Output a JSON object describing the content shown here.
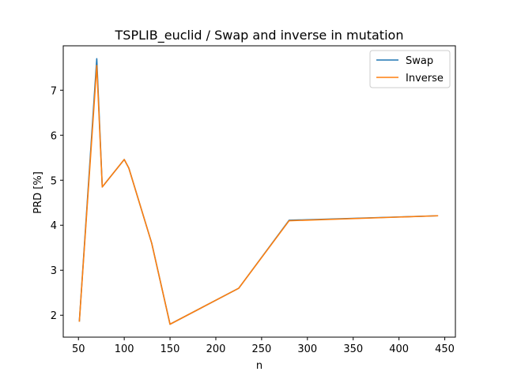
{
  "chart_data": {
    "type": "line",
    "title": "TSPLIB_euclid / Swap and inverse in mutation",
    "xlabel": "n",
    "ylabel": "PRD [%]",
    "xlim": [
      33.4,
      461.6
    ],
    "ylim": [
      1.513,
      7.987
    ],
    "xticks": [
      50,
      100,
      150,
      200,
      250,
      300,
      350,
      400,
      450
    ],
    "yticks": [
      2,
      3,
      4,
      5,
      6,
      7
    ],
    "x": [
      51,
      70,
      76,
      100,
      105,
      130,
      150,
      225,
      280,
      442
    ],
    "series": [
      {
        "name": "Swap",
        "color": "#1f77b4",
        "values": [
          1.87,
          7.7,
          4.85,
          5.46,
          5.27,
          3.6,
          1.8,
          2.6,
          4.11,
          4.21
        ]
      },
      {
        "name": "Inverse",
        "color": "#ff7f0e",
        "values": [
          1.87,
          7.55,
          4.85,
          5.46,
          5.27,
          3.6,
          1.8,
          2.6,
          4.1,
          4.21
        ]
      }
    ],
    "legend_position": "top-right",
    "grid": false
  }
}
